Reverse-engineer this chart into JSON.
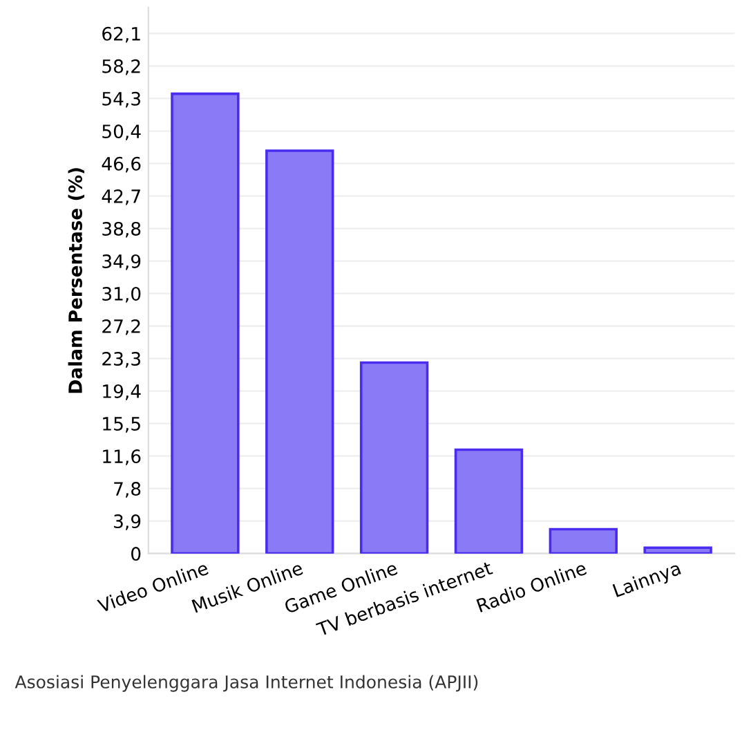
{
  "chart_data": {
    "type": "bar",
    "ylabel": "Dalam Persentase (%)",
    "categories": [
      "Video Online",
      "Musik Online",
      "Game Online",
      "TV berbasis internet",
      "Radio Online",
      "Lainnya"
    ],
    "values": [
      54.9,
      48.1,
      22.8,
      12.4,
      2.9,
      0.7
    ],
    "color": "#8b7af5",
    "ylim": [
      0,
      65.2
    ],
    "yticks": [
      0,
      {
        "value": 3.88,
        "label": "3,9"
      },
      {
        "value": 7.76,
        "label": "7,8"
      },
      {
        "value": 11.64,
        "label": "11,6"
      },
      {
        "value": 15.53,
        "label": "15,5"
      },
      {
        "value": 19.41,
        "label": "19,4"
      },
      {
        "value": 23.29,
        "label": "23,3"
      },
      {
        "value": 27.17,
        "label": "27,2"
      },
      {
        "value": 31.05,
        "label": "31,0"
      },
      {
        "value": 34.93,
        "label": "34,9"
      },
      {
        "value": 38.81,
        "label": "38,8"
      },
      {
        "value": 42.69,
        "label": "42,7"
      },
      {
        "value": 46.58,
        "label": "46,6"
      },
      {
        "value": 50.44,
        "label": "50,4"
      },
      {
        "value": 54.34,
        "label": "54,3"
      },
      {
        "value": 58.22,
        "label": "58,2"
      },
      {
        "value": 62.1,
        "label": "62,1"
      }
    ],
    "grid": "y",
    "annotations": [
      "Asosiasi Penyelenggara Jasa Internet Indonesia (APJII)"
    ]
  }
}
